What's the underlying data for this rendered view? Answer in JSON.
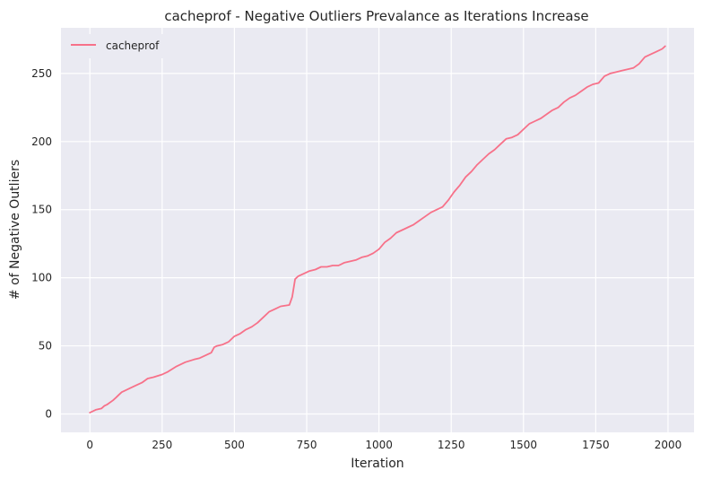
{
  "chart_data": {
    "type": "line",
    "title": "cacheprof - Negative Outliers Prevalance as Iterations Increase",
    "xlabel": "Iteration",
    "ylabel": "# of Negative Outliers",
    "xlim": [
      -100,
      2090
    ],
    "ylim": [
      -13.5,
      283.5
    ],
    "xticks": [
      0,
      250,
      500,
      750,
      1000,
      1250,
      1500,
      1750,
      2000
    ],
    "xtick_labels": [
      "0",
      "250",
      "500",
      "750",
      "1000",
      "1250",
      "1500",
      "1750",
      "2000"
    ],
    "yticks": [
      0,
      50,
      100,
      150,
      200,
      250
    ],
    "ytick_labels": [
      "0",
      "50",
      "100",
      "150",
      "200",
      "250"
    ],
    "grid": true,
    "legend_position": "top-left",
    "background_color": "#eaeaf2",
    "grid_color": "#ffffff",
    "series": [
      {
        "name": "cacheprof",
        "color": "#f77189",
        "x": [
          0,
          20,
          40,
          50,
          60,
          80,
          90,
          100,
          110,
          120,
          140,
          160,
          180,
          200,
          220,
          250,
          270,
          300,
          330,
          360,
          380,
          400,
          420,
          430,
          440,
          460,
          480,
          500,
          520,
          540,
          560,
          580,
          600,
          620,
          640,
          660,
          690,
          700,
          710,
          720,
          740,
          760,
          780,
          800,
          820,
          840,
          860,
          880,
          900,
          920,
          940,
          960,
          980,
          1000,
          1020,
          1040,
          1060,
          1080,
          1100,
          1120,
          1140,
          1160,
          1180,
          1200,
          1220,
          1240,
          1260,
          1280,
          1300,
          1320,
          1340,
          1360,
          1380,
          1400,
          1420,
          1440,
          1460,
          1480,
          1500,
          1520,
          1540,
          1560,
          1580,
          1600,
          1620,
          1640,
          1660,
          1680,
          1700,
          1720,
          1740,
          1760,
          1780,
          1800,
          1820,
          1840,
          1860,
          1880,
          1900,
          1920,
          1940,
          1960,
          1980,
          1990
        ],
        "y": [
          1,
          3,
          4,
          6,
          7,
          10,
          12,
          14,
          16,
          17,
          19,
          21,
          23,
          26,
          27,
          29,
          31,
          35,
          38,
          40,
          41,
          43,
          45,
          49,
          50,
          51,
          53,
          57,
          59,
          62,
          64,
          67,
          71,
          75,
          77,
          79,
          80,
          86,
          99,
          101,
          103,
          105,
          106,
          108,
          108,
          109,
          109,
          111,
          112,
          113,
          115,
          116,
          118,
          121,
          126,
          129,
          133,
          135,
          137,
          139,
          142,
          145,
          148,
          150,
          152,
          157,
          163,
          168,
          174,
          178,
          183,
          187,
          191,
          194,
          198,
          202,
          203,
          205,
          209,
          213,
          215,
          217,
          220,
          223,
          225,
          229,
          232,
          234,
          237,
          240,
          242,
          243,
          248,
          250,
          251,
          252,
          253,
          254,
          257,
          262,
          264,
          266,
          268,
          270
        ]
      }
    ]
  }
}
